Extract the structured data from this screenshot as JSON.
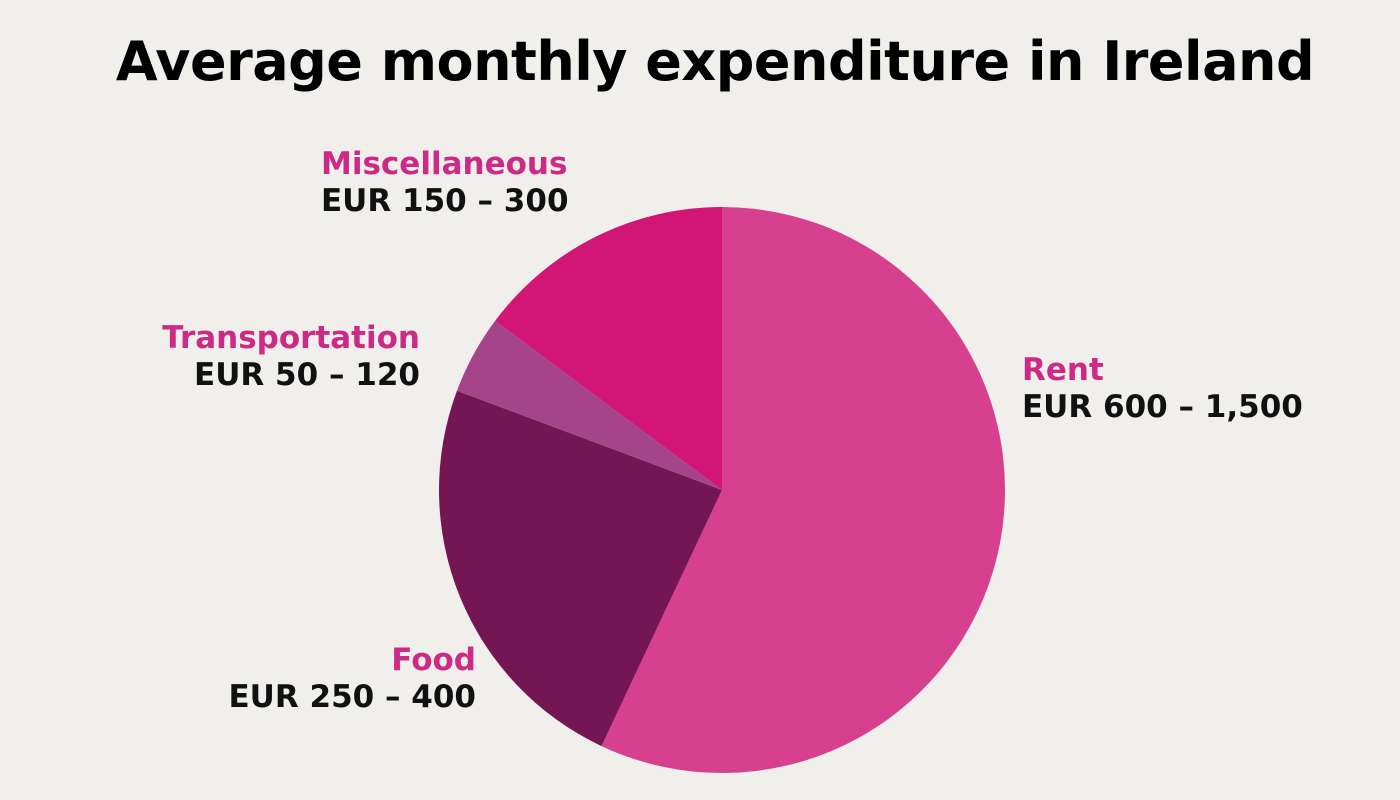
{
  "colors": {
    "background": "#f0efeb",
    "label_accent": "#cc2a85"
  },
  "chart_data": {
    "type": "pie",
    "title": "Average monthly expenditure in Ireland",
    "slices": [
      {
        "category": "Rent",
        "value_label": "EUR 600 – 1,500",
        "share": 0.57,
        "color": "#d6408f"
      },
      {
        "category": "Food",
        "value_label": "EUR 250 – 400",
        "share": 0.237,
        "color": "#731653"
      },
      {
        "category": "Transportation",
        "value_label": "EUR 50 – 120",
        "share": 0.045,
        "color": "#a54489"
      },
      {
        "category": "Miscellaneous",
        "value_label": "EUR 150 – 300",
        "share": 0.148,
        "color": "#d11675"
      }
    ]
  }
}
